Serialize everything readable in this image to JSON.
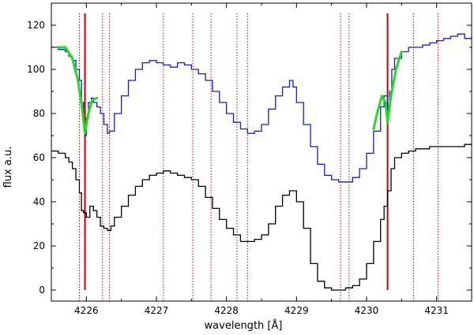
{
  "chart_data": {
    "type": "line",
    "title": "",
    "xlabel": "wavelength [Å]",
    "ylabel": "flux a.u.",
    "xlim": [
      4225.5,
      4231.5
    ],
    "ylim": [
      -5,
      130
    ],
    "x_ticks": [
      4226,
      4227,
      4228,
      4229,
      4230,
      4231
    ],
    "y_ticks": [
      0,
      20,
      40,
      60,
      80,
      100,
      120
    ],
    "grid": false,
    "legend": "none",
    "series": [
      {
        "style": "step",
        "color": "#1a1acc",
        "x": [
          4225.5,
          4225.6,
          4225.7,
          4225.75,
          4225.8,
          4225.85,
          4225.9,
          4225.93,
          4225.96,
          4225.98,
          4226.0,
          4226.03,
          4226.07,
          4226.1,
          4226.15,
          4226.2,
          4226.25,
          4226.3,
          4226.33,
          4226.4,
          4226.5,
          4226.6,
          4226.7,
          4226.8,
          4226.9,
          4227.0,
          4227.1,
          4227.2,
          4227.3,
          4227.4,
          4227.5,
          4227.6,
          4227.7,
          4227.8,
          4227.9,
          4228.0,
          4228.1,
          4228.2,
          4228.3,
          4228.4,
          4228.5,
          4228.6,
          4228.7,
          4228.8,
          4228.9,
          4228.95,
          4229.0,
          4229.1,
          4229.2,
          4229.3,
          4229.4,
          4229.5,
          4229.6,
          4229.7,
          4229.8,
          4229.9,
          4230.0,
          4230.1,
          4230.2,
          4230.25,
          4230.3,
          4230.33,
          4230.36,
          4230.4,
          4230.5,
          4230.6,
          4230.7,
          4230.8,
          4230.9,
          4231.0,
          4231.1,
          4231.2,
          4231.3,
          4231.4,
          4231.5
        ],
        "y": [
          110,
          109,
          108,
          106,
          104,
          100,
          95,
          85,
          75,
          70,
          78,
          85,
          87,
          85,
          83,
          80,
          75,
          71,
          72,
          80,
          88,
          95,
          100,
          103,
          104,
          103,
          102,
          101,
          103,
          102,
          100,
          98,
          95,
          90,
          85,
          80,
          76,
          73,
          71,
          72,
          75,
          82,
          88,
          92,
          95,
          92,
          85,
          75,
          65,
          57,
          52,
          50,
          49,
          49,
          51,
          55,
          62,
          72,
          83,
          88,
          82,
          90,
          100,
          105,
          108,
          110,
          110,
          111,
          112,
          113,
          114,
          115,
          116,
          114,
          115
        ]
      },
      {
        "style": "step",
        "color": "#000000",
        "x": [
          4225.5,
          4225.6,
          4225.7,
          4225.75,
          4225.8,
          4225.85,
          4225.9,
          4225.93,
          4225.96,
          4226.0,
          4226.05,
          4226.1,
          4226.15,
          4226.2,
          4226.25,
          4226.3,
          4226.35,
          4226.4,
          4226.5,
          4226.6,
          4226.7,
          4226.8,
          4226.9,
          4227.0,
          4227.1,
          4227.2,
          4227.3,
          4227.4,
          4227.5,
          4227.6,
          4227.7,
          4227.8,
          4227.9,
          4228.0,
          4228.1,
          4228.2,
          4228.3,
          4228.4,
          4228.5,
          4228.6,
          4228.7,
          4228.8,
          4228.9,
          4229.0,
          4229.1,
          4229.2,
          4229.3,
          4229.4,
          4229.5,
          4229.6,
          4229.7,
          4229.8,
          4229.9,
          4230.0,
          4230.1,
          4230.2,
          4230.25,
          4230.3,
          4230.35,
          4230.4,
          4230.5,
          4230.6,
          4230.7,
          4230.8,
          4230.9,
          4231.0,
          4231.1,
          4231.2,
          4231.3,
          4231.4,
          4231.5
        ],
        "y": [
          63,
          62,
          60,
          58,
          55,
          50,
          44,
          36,
          35,
          33,
          38,
          36,
          33,
          29,
          28,
          27,
          29,
          33,
          38,
          43,
          47,
          50,
          52,
          53,
          54,
          53,
          52,
          51,
          50,
          47,
          42,
          37,
          32,
          28,
          25,
          22,
          22,
          23,
          25,
          30,
          38,
          43,
          45,
          40,
          28,
          12,
          4,
          1,
          0,
          0,
          1,
          2,
          5,
          12,
          22,
          32,
          38,
          45,
          55,
          60,
          62,
          63,
          64,
          64,
          65,
          65,
          65,
          65,
          65,
          66,
          66
        ]
      },
      {
        "style": "line",
        "color": "#22dd22",
        "x": [
          4225.6,
          4225.7,
          4225.8,
          4225.88,
          4225.94,
          4225.98,
          4226.02,
          4226.08,
          4226.15
        ],
        "y": [
          110,
          110,
          105,
          95,
          82,
          71,
          79,
          86,
          87
        ]
      },
      {
        "style": "line",
        "color": "#22dd22",
        "x": [
          4230.1,
          4230.15,
          4230.22,
          4230.27,
          4230.3,
          4230.35,
          4230.42,
          4230.5
        ],
        "y": [
          73,
          80,
          88,
          85,
          76,
          88,
          100,
          108
        ]
      }
    ],
    "vlines_solid": [
      4225.98,
      4230.3
    ],
    "vlines_dotted": [
      4225.9,
      4226.23,
      4226.33,
      4227.1,
      4227.52,
      4227.78,
      4228.15,
      4228.3,
      4229.63,
      4229.75,
      4230.67,
      4231.02
    ],
    "vline_color": "#cc0000"
  }
}
